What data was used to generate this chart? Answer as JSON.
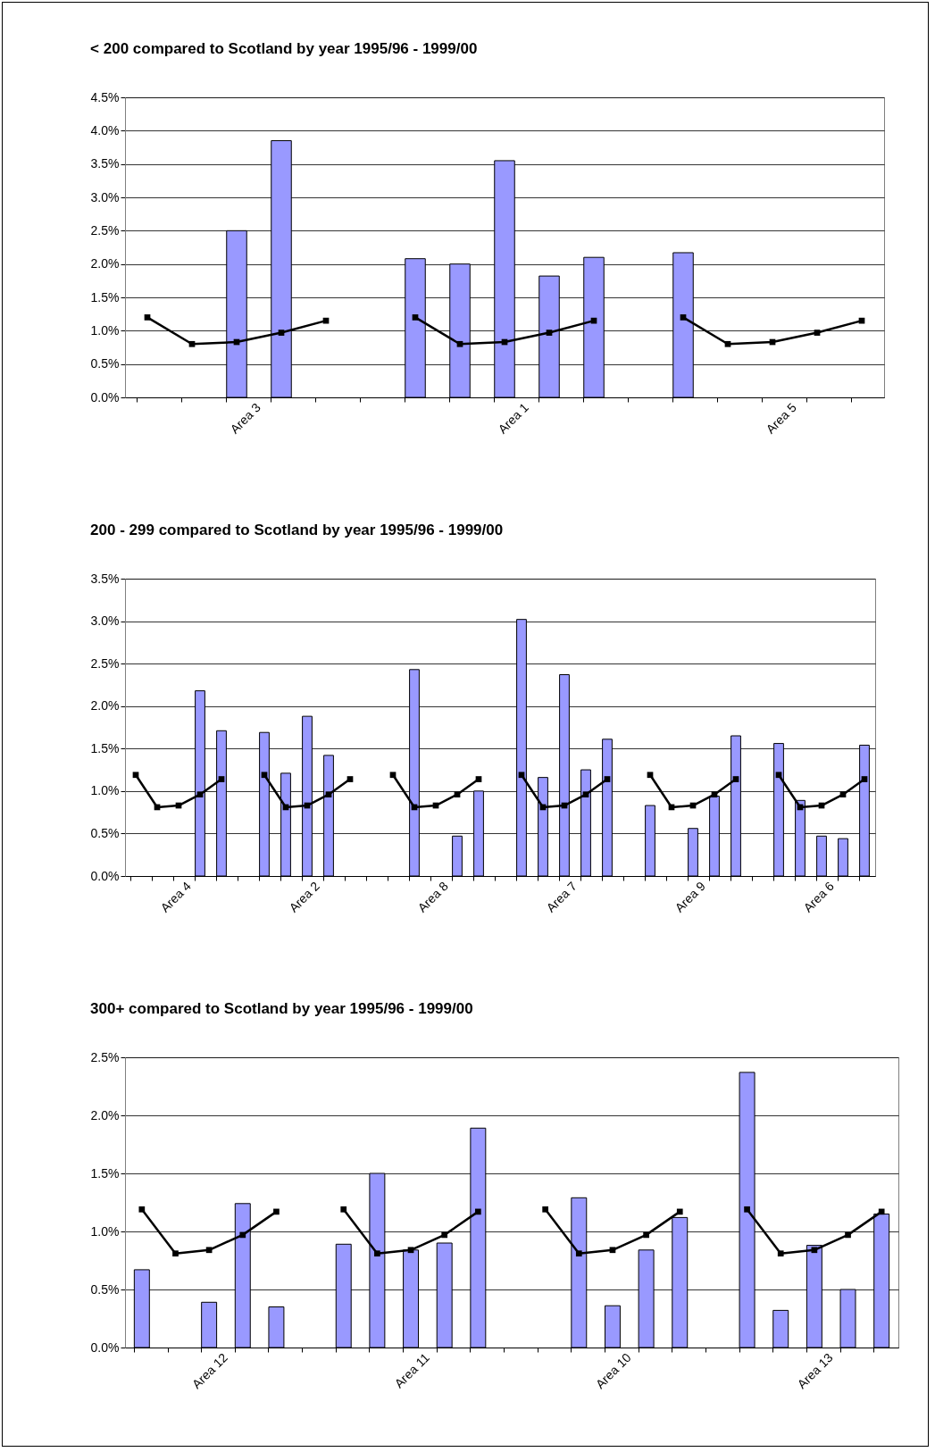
{
  "chart_data": [
    {
      "type": "bar",
      "title": "< 200 compared to Scotland by year 1995/96 - 1999/00",
      "categories": [
        null,
        null,
        "Area 3",
        null,
        null,
        null,
        null,
        null,
        "Area 1",
        null,
        null,
        null,
        null,
        null,
        "Area 5",
        null,
        null
      ],
      "series": [
        {
          "color": "#9999ff",
          "values": [
            null,
            null,
            2.5,
            3.85,
            null,
            null,
            2.08,
            2.0,
            3.55,
            1.82,
            2.1,
            null,
            2.17,
            null,
            null,
            null,
            null
          ]
        },
        {
          "type": "line",
          "color": "#000000",
          "values": [
            1.2,
            0.8,
            0.83,
            0.97,
            1.15,
            null,
            1.2,
            0.8,
            0.83,
            0.97,
            1.15,
            null,
            1.2,
            0.8,
            0.83,
            0.97,
            1.15
          ]
        }
      ],
      "ylim": [
        0,
        4.5
      ],
      "yticks": [
        {
          "value": 0,
          "label": "0.0%"
        },
        {
          "value": 0.5,
          "label": "0.5%"
        },
        {
          "value": 1,
          "label": "1.0%"
        },
        {
          "value": 1.5,
          "label": "1.5%"
        },
        {
          "value": 2,
          "label": "2.0%"
        },
        {
          "value": 2.5,
          "label": "2.5%"
        },
        {
          "value": 3,
          "label": "3.0%"
        },
        {
          "value": 3.5,
          "label": "3.5%"
        },
        {
          "value": 4,
          "label": "4.0%"
        },
        {
          "value": 4.5,
          "label": "4.5%"
        }
      ],
      "grid": "y",
      "marker": "square"
    },
    {
      "type": "bar",
      "title": "200 - 299 compared to Scotland by year 1995/96 - 1999/00",
      "categories": [
        null,
        null,
        "Area 4",
        null,
        null,
        null,
        null,
        null,
        "Area 2",
        null,
        null,
        null,
        null,
        null,
        "Area 8",
        null,
        null,
        null,
        null,
        null,
        "Area 7",
        null,
        null,
        null,
        null,
        null,
        "Area 9",
        null,
        null,
        null,
        null,
        null,
        "Area 6",
        null,
        null
      ],
      "series": [
        {
          "color": "#9999ff",
          "values": [
            null,
            null,
            null,
            2.18,
            1.71,
            null,
            1.69,
            1.21,
            1.88,
            1.42,
            null,
            null,
            null,
            2.43,
            null,
            0.47,
            1.0,
            null,
            3.02,
            1.16,
            2.37,
            1.25,
            1.61,
            null,
            0.83,
            null,
            0.56,
            0.94,
            1.65,
            null,
            1.56,
            0.89,
            0.47,
            0.44,
            1.54
          ]
        },
        {
          "type": "line",
          "color": "#000000",
          "values": [
            1.19,
            0.81,
            0.83,
            0.96,
            1.14,
            null,
            1.19,
            0.81,
            0.83,
            0.96,
            1.14,
            null,
            1.19,
            0.81,
            0.83,
            0.96,
            1.14,
            null,
            1.19,
            0.81,
            0.83,
            0.96,
            1.14,
            null,
            1.19,
            0.81,
            0.83,
            0.96,
            1.14,
            null,
            1.19,
            0.81,
            0.83,
            0.96,
            1.14
          ]
        }
      ],
      "ylim": [
        0,
        3.5
      ],
      "yticks": [
        {
          "value": 0,
          "label": "0.0%"
        },
        {
          "value": 0.5,
          "label": "0.5%"
        },
        {
          "value": 1,
          "label": "1.0%"
        },
        {
          "value": 1.5,
          "label": "1.5%"
        },
        {
          "value": 2,
          "label": "2.0%"
        },
        {
          "value": 2.5,
          "label": "2.5%"
        },
        {
          "value": 3,
          "label": "3.0%"
        },
        {
          "value": 3.5,
          "label": "3.5%"
        }
      ],
      "grid": "y",
      "marker": "square"
    },
    {
      "type": "bar",
      "title": "300+ compared to Scotland by year 1995/96 - 1999/00",
      "categories": [
        null,
        null,
        "Area 12",
        null,
        null,
        null,
        null,
        null,
        "Area 11",
        null,
        null,
        null,
        null,
        null,
        "Area 10",
        null,
        null,
        null,
        null,
        null,
        "Area 13",
        null,
        null
      ],
      "series": [
        {
          "color": "#9999ff",
          "values": [
            0.67,
            null,
            0.39,
            1.24,
            0.35,
            null,
            0.89,
            1.5,
            0.84,
            0.9,
            1.89,
            null,
            null,
            1.29,
            0.36,
            0.84,
            1.12,
            null,
            2.37,
            0.32,
            0.88,
            0.5,
            1.15
          ]
        },
        {
          "type": "line",
          "color": "#000000",
          "values": [
            1.19,
            0.81,
            0.84,
            0.97,
            1.17,
            null,
            1.19,
            0.81,
            0.84,
            0.97,
            1.17,
            null,
            1.19,
            0.81,
            0.84,
            0.97,
            1.17,
            null,
            1.19,
            0.81,
            0.84,
            0.97,
            1.17
          ]
        }
      ],
      "ylim": [
        0,
        2.5
      ],
      "yticks": [
        {
          "value": 0,
          "label": "0.0%"
        },
        {
          "value": 0.5,
          "label": "0.5%"
        },
        {
          "value": 1,
          "label": "1.0%"
        },
        {
          "value": 1.5,
          "label": "1.5%"
        },
        {
          "value": 2,
          "label": "2.0%"
        },
        {
          "value": 2.5,
          "label": "2.5%"
        }
      ],
      "grid": "y",
      "marker": "square"
    }
  ]
}
